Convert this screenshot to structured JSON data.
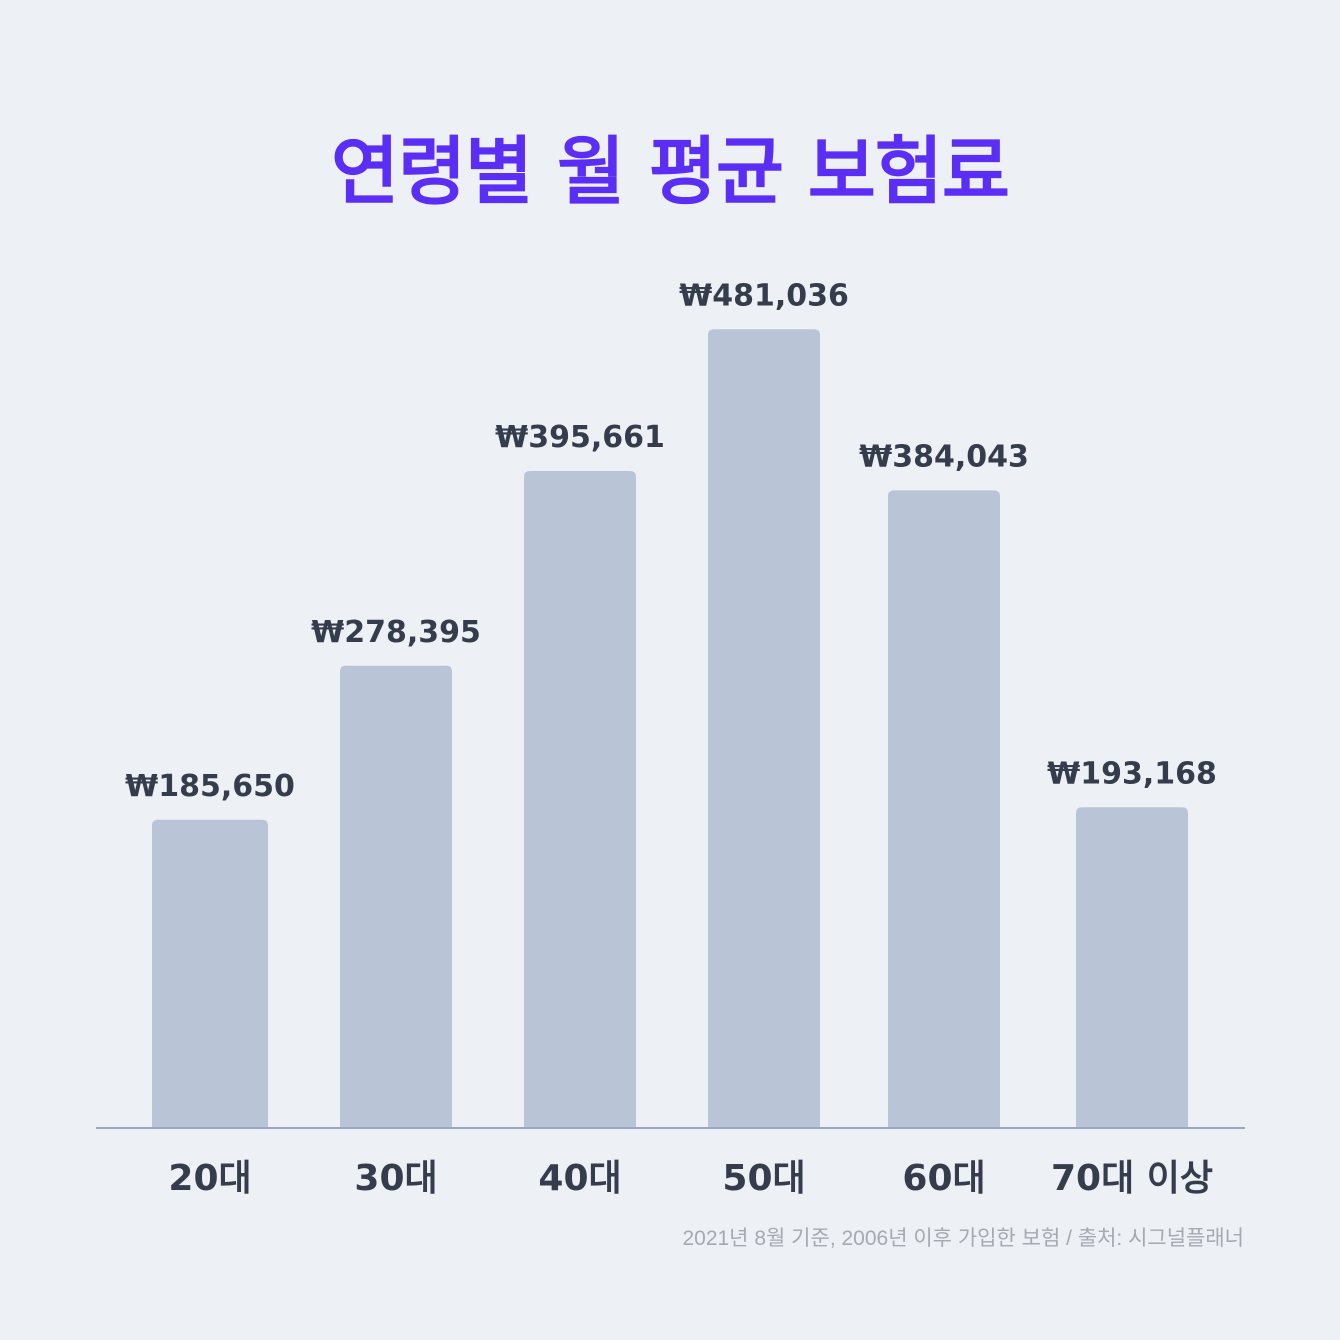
{
  "chart_data": {
    "type": "bar",
    "title": "연령별 월 평균 보험료",
    "categories": [
      "20대",
      "30대",
      "40대",
      "50대",
      "60대",
      "70대 이상"
    ],
    "values": [
      185650,
      278395,
      395661,
      481036,
      384043,
      193168
    ],
    "value_labels": [
      "₩185,650",
      "₩278,395",
      "₩395,661",
      "₩481,036",
      "₩384,043",
      "₩193,168"
    ],
    "xlabel": "",
    "ylabel": "",
    "ylim": [
      0,
      530000
    ],
    "grid": false,
    "bar_color": "#bac4d7",
    "title_color": "#5b2ef5",
    "label_color": "#353d4d",
    "footnote": "2021년 8월 기준, 2006년 이후 가입한 보험 / 출처: 시그널플래너"
  }
}
